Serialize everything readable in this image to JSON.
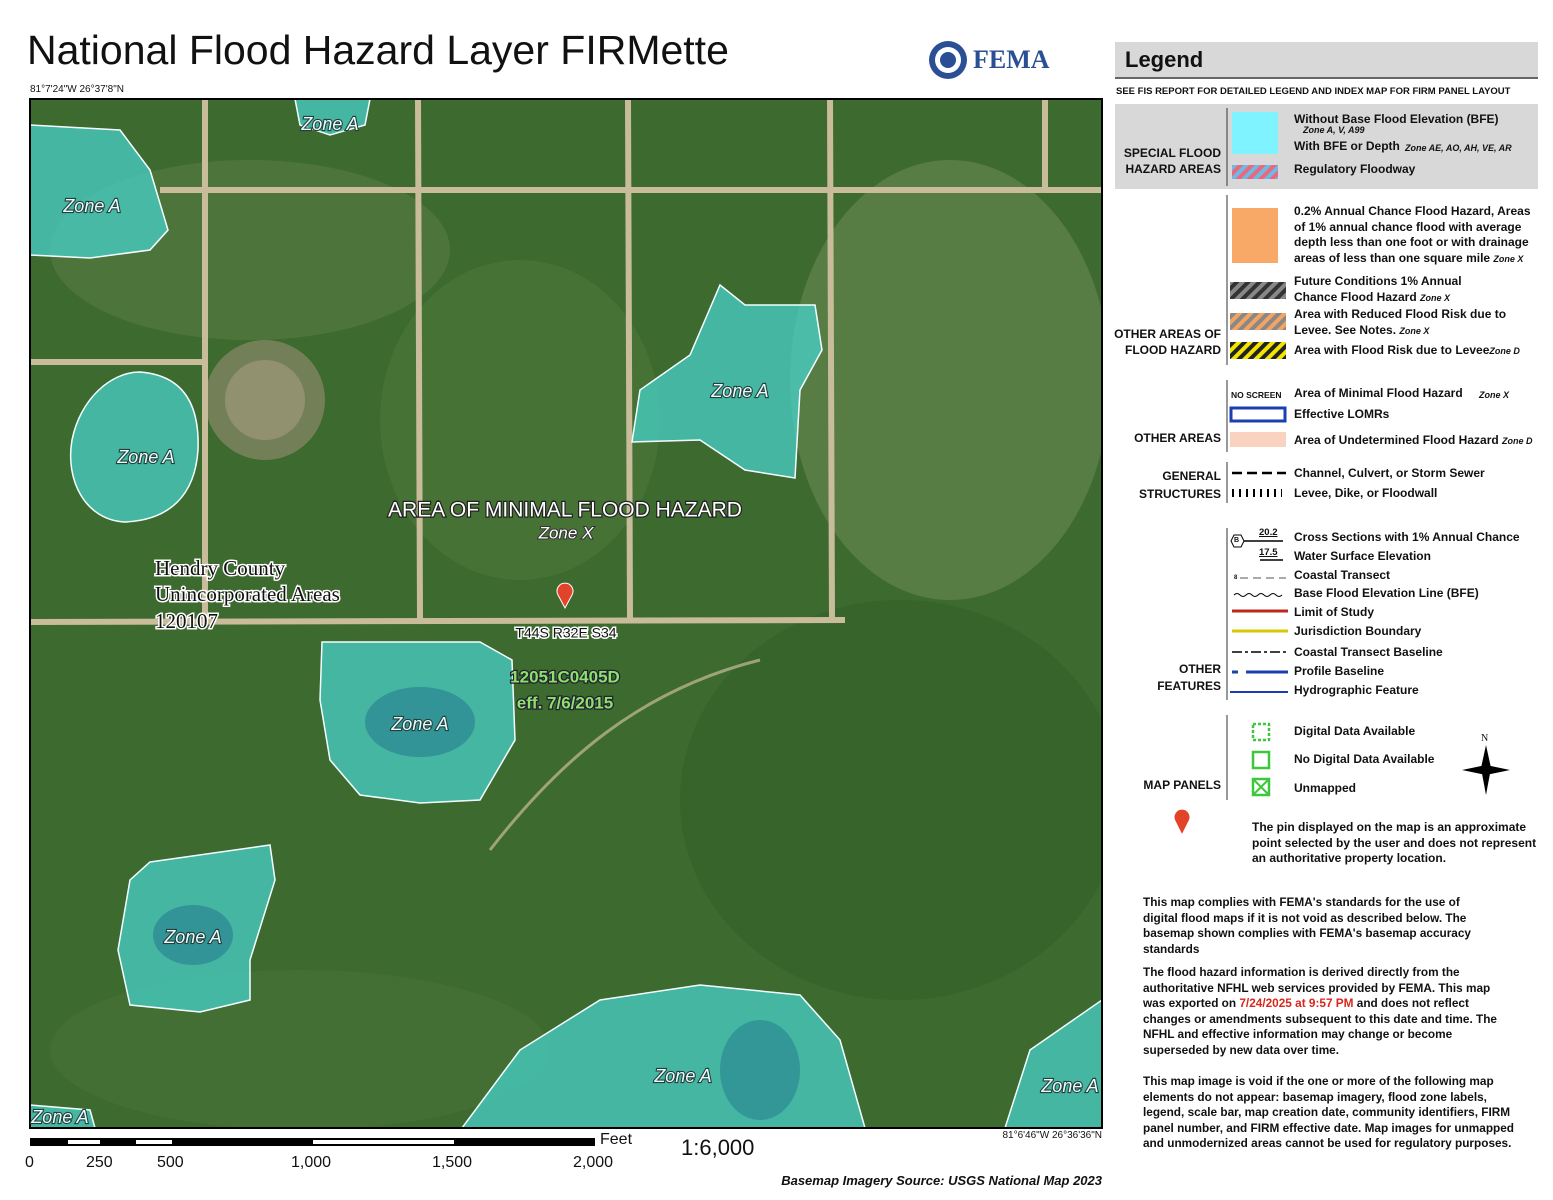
{
  "header": {
    "title": "National Flood Hazard Layer FIRMette",
    "agency": "FEMA",
    "coords_top_left": "81°7'24\"W 26°37'8\"N"
  },
  "map": {
    "zone_labels": [
      "Zone A",
      "Zone A",
      "Zone A",
      "Zone A",
      "Zone A",
      "Zone A",
      "Zone A",
      "Zone A",
      "Zone A"
    ],
    "area_label": "AREA OF MINIMAL FLOOD HAZARD",
    "area_zone": "Zone X",
    "community": [
      "Hendry County",
      "Unincorporated Areas",
      "120107"
    ],
    "section": "T44S R32E S34",
    "panel": "12051C0405D",
    "panel_effective": "eff. 7/6/2015",
    "coords_bottom_right": "81°6'46\"W 26°36'36\"N"
  },
  "scale": {
    "unit": "Feet",
    "ticks": [
      "0",
      "250",
      "500",
      "1,000",
      "1,500",
      "2,000"
    ],
    "ratio": "1:6,000",
    "source": "Basemap Imagery Source: USGS National Map 2023"
  },
  "legend": {
    "title": "Legend",
    "note": "SEE FIS REPORT FOR DETAILED LEGEND AND INDEX MAP FOR FIRM PANEL LAYOUT",
    "special": {
      "label": "SPECIAL FLOOD HAZARD AREAS",
      "items": [
        {
          "text": "Without Base Flood Elevation (BFE)",
          "zone": "Zone A, V, A99"
        },
        {
          "text": "With BFE or Depth",
          "zone": "Zone AE, AO, AH, VE, AR"
        },
        {
          "text": "Regulatory Floodway"
        }
      ]
    },
    "other_hazard": {
      "label": "OTHER AREAS OF FLOOD HAZARD",
      "items": [
        {
          "text": "0.2% Annual Chance Flood Hazard, Areas of 1% annual chance flood with average depth less than one foot or with drainage areas of less than one square mile",
          "zone": "Zone X"
        },
        {
          "text": "Future Conditions 1% Annual Chance Flood Hazard",
          "zone": "Zone X"
        },
        {
          "text": "Area with Reduced Flood Risk due to Levee. See Notes.",
          "zone": "Zone X"
        },
        {
          "text": "Area with Flood Risk due to Levee",
          "zone": "Zone D"
        }
      ]
    },
    "other_areas": {
      "label": "OTHER AREAS",
      "swatch": "NO SCREEN",
      "items": [
        {
          "text": "Area of Minimal Flood Hazard",
          "zone": "Zone X"
        },
        {
          "text": "Effective LOMRs"
        },
        {
          "text": "Area of Undetermined Flood Hazard",
          "zone": "Zone D"
        }
      ]
    },
    "structures": {
      "label": "GENERAL STRUCTURES",
      "items": [
        "Channel, Culvert, or Storm Sewer",
        "Levee, Dike, or Floodwall"
      ]
    },
    "features": {
      "label": "OTHER FEATURES",
      "swatch_labels": [
        "B",
        "20.2",
        "17.5",
        "8"
      ],
      "items": [
        "Cross Sections with 1% Annual Chance",
        "Water Surface Elevation",
        "Coastal Transect",
        "Base Flood Elevation Line (BFE)",
        "Limit of Study",
        "Jurisdiction Boundary",
        "Coastal Transect Baseline",
        "Profile Baseline",
        "Hydrographic Feature"
      ]
    },
    "panels": {
      "label": "MAP PANELS",
      "items": [
        "Digital Data Available",
        "No Digital Data Available",
        "Unmapped"
      ],
      "north": "N"
    },
    "pin_note": "The pin displayed on the map is an approximate point selected by the user and does not represent an authoritative property location."
  },
  "notes": {
    "compliance": "This map complies with FEMA's standards for the use of digital flood maps if it is not void as described below. The basemap shown complies with FEMA's basemap accuracy standards",
    "export_before": "The flood hazard information is derived directly from the authoritative NFHL web services provided by FEMA. This map was exported on",
    "export_date": "7/24/2025 at 9:57 PM",
    "export_after": "and does not reflect changes or amendments subsequent to this date and time. The NFHL and effective information may change or become superseded by new data over time.",
    "void": "This map image is void if the one or more of the following map elements do not appear: basemap imagery, flood zone labels, legend, scale bar, map creation date, community identifiers, FIRM panel number, and FIRM effective date. Map images for unmapped and unmodernized areas cannot be used for regulatory purposes."
  }
}
